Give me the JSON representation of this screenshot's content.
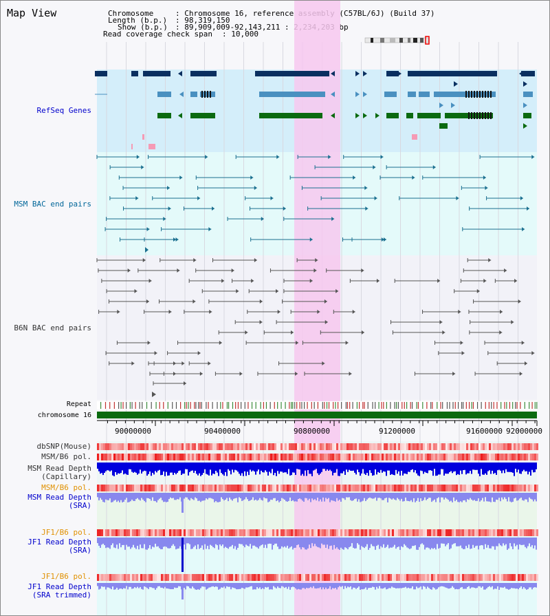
{
  "header": {
    "title": "Map View",
    "chromosome_label": "Chromosome",
    "chromosome_value": ": Chromosome 16, reference assembly (C57BL/6J) (Build 37)",
    "length_label": "Length (b.p.)",
    "length_value": ": 98,319,150",
    "show_label": "Show (b.p.)",
    "show_value": ": 89,909,009-92,143,211 : 2,234,203 bp",
    "coverage_label": "Read coverage check span",
    "coverage_value": ": 10,000"
  },
  "tracks": {
    "refseq": "RefSeq Genes",
    "msm_bac": "MSM BAC end pairs",
    "b6n_bac": "B6N BAC end pairs",
    "repeat": "Repeat",
    "chromosome": "chromosome 16",
    "dbsnp": "dbSNP(Mouse)",
    "msm_b6_pol_1": "MSM/B6 pol.",
    "msm_read_depth_cap_1": "MSM Read Depth",
    "msm_read_depth_cap_2": "(Capillary)",
    "msm_b6_pol_2": "MSM/B6 pol.",
    "msm_read_depth_sra_1": "MSM Read Depth",
    "msm_read_depth_sra_2": "(SRA)",
    "jf1_b6_pol_1": "JF1/B6 pol.",
    "jf1_read_depth_sra_1": "JF1 Read Depth",
    "jf1_read_depth_sra_2": "(SRA)",
    "jf1_b6_pol_2": "JF1/B6 pol.",
    "jf1_read_depth_trim_1": "JF1 Read Depth",
    "jf1_read_depth_trim_2": "(SRA trimmed)"
  },
  "axis": {
    "ticks": [
      "90000000",
      "90400000",
      "90800000",
      "91200000",
      "91600000",
      "92000000"
    ]
  },
  "colors": {
    "refseq_bg": "#d4eefa",
    "msm_bg": "#e4fafa",
    "highlight": "#f7c8ef",
    "gene_dark": "#0a2f60",
    "gene_mid": "#4a90c0",
    "gene_green": "#0b6a10",
    "msm_line": "#1a6f8f",
    "b6n_line": "#555555",
    "chrom_green": "#0b6a10",
    "snp_red": "#f04848",
    "depth_blue": "#0000dd",
    "depth_lavender": "#8888ee"
  }
}
